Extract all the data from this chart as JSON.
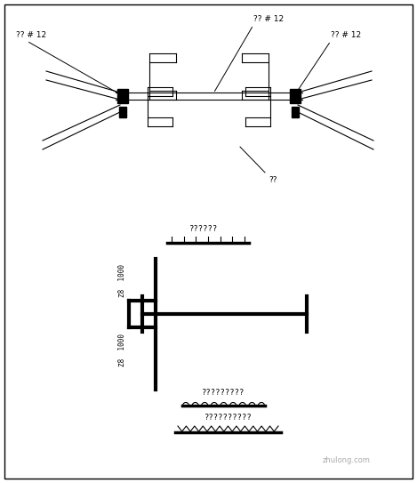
{
  "bg_color": "#ffffff",
  "line_color": "#000000",
  "thick_lw": 3.0,
  "thin_lw": 0.8,
  "fig_width": 4.69,
  "fig_height": 5.43,
  "label_top_center": "?? # 12",
  "label_left": "?? # 12",
  "label_right": "?? # 12",
  "label_bottom_center": "??",
  "label_legend1": "??????",
  "label_legend2": "?????????",
  "label_legend3": "??????????",
  "label_dim1": "Ζ8  1000",
  "label_dim2": "Ζ8  1000"
}
